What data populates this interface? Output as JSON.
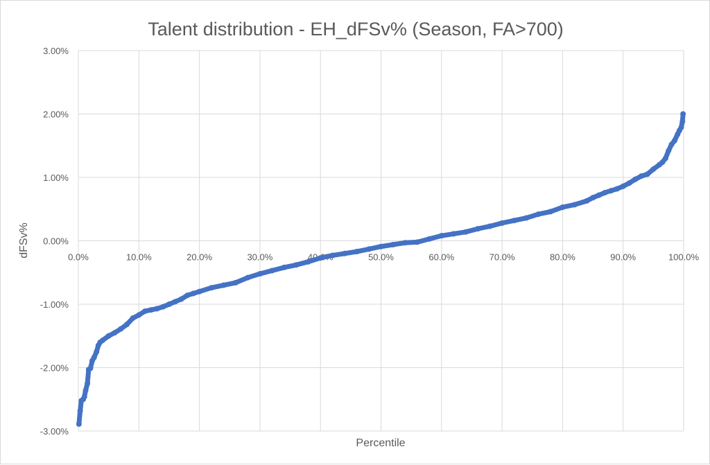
{
  "chart_data": {
    "type": "scatter",
    "title": "Talent distribution - EH_dFSv% (Season, FA>700)",
    "xlabel": "Percentile",
    "ylabel": "dFSv%",
    "xlim": [
      0,
      100
    ],
    "ylim": [
      -3,
      3
    ],
    "xticks": [
      "0.0%",
      "10.0%",
      "20.0%",
      "30.0%",
      "40.0%",
      "50.0%",
      "60.0%",
      "70.0%",
      "80.0%",
      "90.0%",
      "100.0%"
    ],
    "yticks": [
      "3.00%",
      "2.00%",
      "1.00%",
      "0.00%",
      "-1.00%",
      "-2.00%",
      "-3.00%"
    ],
    "grid": true,
    "color": "#4472C4",
    "x": [
      0.1,
      0.3,
      0.5,
      0.8,
      1.0,
      1.2,
      1.5,
      1.7,
      2.0,
      2.3,
      2.6,
      3.0,
      3.3,
      3.6,
      4.0,
      5.0,
      6.0,
      7.0,
      8.0,
      9.0,
      10.0,
      11.0,
      12.0,
      13.0,
      14.0,
      15.0,
      16.0,
      17.0,
      18.0,
      19.0,
      20.0,
      22.0,
      24.0,
      26.0,
      28.0,
      30.0,
      32.0,
      34.0,
      36.0,
      38.0,
      40.0,
      42.0,
      44.0,
      46.0,
      48.0,
      50.0,
      52.0,
      54.0,
      56.0,
      58.0,
      60.0,
      62.0,
      64.0,
      66.0,
      68.0,
      70.0,
      72.0,
      74.0,
      76.0,
      78.0,
      80.0,
      82.0,
      84.0,
      85.0,
      86.0,
      87.0,
      88.0,
      89.0,
      90.0,
      91.0,
      92.0,
      93.0,
      94.0,
      95.0,
      96.0,
      96.5,
      97.0,
      97.5,
      98.0,
      98.5,
      99.0,
      99.3,
      99.6,
      99.8,
      99.9
    ],
    "y": [
      -2.89,
      -2.68,
      -2.52,
      -2.5,
      -2.46,
      -2.36,
      -2.25,
      -2.03,
      -2.01,
      -1.89,
      -1.84,
      -1.75,
      -1.65,
      -1.6,
      -1.57,
      -1.5,
      -1.45,
      -1.39,
      -1.32,
      -1.22,
      -1.17,
      -1.11,
      -1.09,
      -1.07,
      -1.04,
      -1.0,
      -0.96,
      -0.92,
      -0.86,
      -0.83,
      -0.8,
      -0.74,
      -0.7,
      -0.66,
      -0.58,
      -0.52,
      -0.47,
      -0.42,
      -0.38,
      -0.33,
      -0.27,
      -0.23,
      -0.2,
      -0.17,
      -0.13,
      -0.09,
      -0.06,
      -0.03,
      -0.02,
      0.03,
      0.08,
      0.11,
      0.14,
      0.19,
      0.23,
      0.28,
      0.32,
      0.36,
      0.42,
      0.46,
      0.53,
      0.57,
      0.63,
      0.68,
      0.72,
      0.76,
      0.79,
      0.82,
      0.86,
      0.91,
      0.97,
      1.02,
      1.05,
      1.13,
      1.2,
      1.24,
      1.3,
      1.42,
      1.52,
      1.58,
      1.68,
      1.74,
      1.79,
      1.88,
      2.0
    ]
  }
}
